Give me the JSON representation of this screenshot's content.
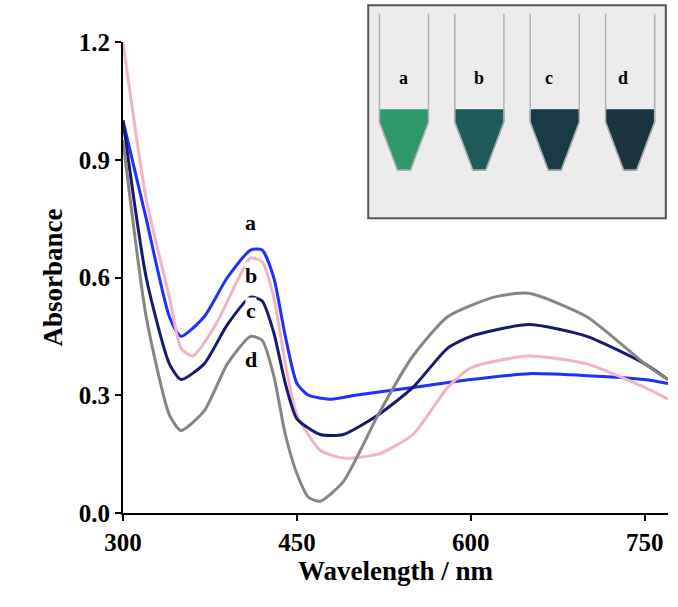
{
  "chart_data": {
    "type": "line",
    "xlabel": "Wavelength / nm",
    "ylabel": "Absorbance",
    "xlim": [
      300,
      770
    ],
    "xticks": [
      300,
      450,
      600,
      750
    ],
    "ylim": [
      0,
      1.2
    ],
    "yticks": [
      {
        "value": 0,
        "label": "0.0"
      },
      0.3,
      0.6,
      0.9,
      1.2
    ],
    "grid": false,
    "series": [
      {
        "name": "a",
        "color": "#1f2fff",
        "x": [
          300,
          320,
          340,
          350,
          370,
          390,
          410,
          420,
          430,
          440,
          450,
          460,
          480,
          500,
          550,
          600,
          650,
          700,
          750,
          770
        ],
        "values": [
          1.0,
          0.75,
          0.5,
          0.45,
          0.5,
          0.6,
          0.67,
          0.67,
          0.6,
          0.45,
          0.33,
          0.3,
          0.29,
          0.3,
          0.32,
          0.34,
          0.355,
          0.35,
          0.34,
          0.33
        ]
      },
      {
        "name": "b",
        "color": "#f2b3c4",
        "x": [
          300,
          320,
          340,
          350,
          360,
          380,
          400,
          410,
          420,
          430,
          440,
          450,
          470,
          490,
          520,
          550,
          580,
          600,
          650,
          700,
          750,
          770
        ],
        "values": [
          1.2,
          0.8,
          0.55,
          0.42,
          0.4,
          0.48,
          0.6,
          0.65,
          0.64,
          0.55,
          0.38,
          0.25,
          0.16,
          0.14,
          0.15,
          0.2,
          0.32,
          0.37,
          0.4,
          0.38,
          0.32,
          0.29
        ]
      },
      {
        "name": "c",
        "color": "#161a6e",
        "x": [
          300,
          320,
          340,
          350,
          370,
          390,
          410,
          420,
          430,
          440,
          450,
          470,
          490,
          520,
          550,
          580,
          600,
          650,
          700,
          750,
          770
        ],
        "values": [
          1.0,
          0.6,
          0.38,
          0.34,
          0.38,
          0.48,
          0.55,
          0.54,
          0.46,
          0.33,
          0.24,
          0.2,
          0.2,
          0.25,
          0.32,
          0.42,
          0.45,
          0.48,
          0.45,
          0.38,
          0.34
        ]
      },
      {
        "name": "d",
        "color": "#858585",
        "x": [
          300,
          320,
          340,
          350,
          370,
          390,
          410,
          420,
          430,
          440,
          450,
          460,
          470,
          490,
          520,
          550,
          580,
          620,
          650,
          700,
          750,
          770
        ],
        "values": [
          0.95,
          0.5,
          0.25,
          0.21,
          0.26,
          0.38,
          0.45,
          0.44,
          0.35,
          0.2,
          0.1,
          0.04,
          0.03,
          0.08,
          0.25,
          0.4,
          0.5,
          0.55,
          0.56,
          0.5,
          0.38,
          0.34
        ]
      }
    ],
    "annotations": [
      {
        "text": "a",
        "x": 410,
        "y": 0.74
      },
      {
        "text": "b",
        "x": 410,
        "y": 0.605
      },
      {
        "text": "c",
        "x": 410,
        "y": 0.515
      },
      {
        "text": "d",
        "x": 410,
        "y": 0.39
      }
    ],
    "inset": {
      "labels": [
        "a",
        "b",
        "c",
        "d"
      ],
      "colors": [
        "#2e9a6c",
        "#1f5a5c",
        "#173b47",
        "#1a3442"
      ]
    }
  }
}
